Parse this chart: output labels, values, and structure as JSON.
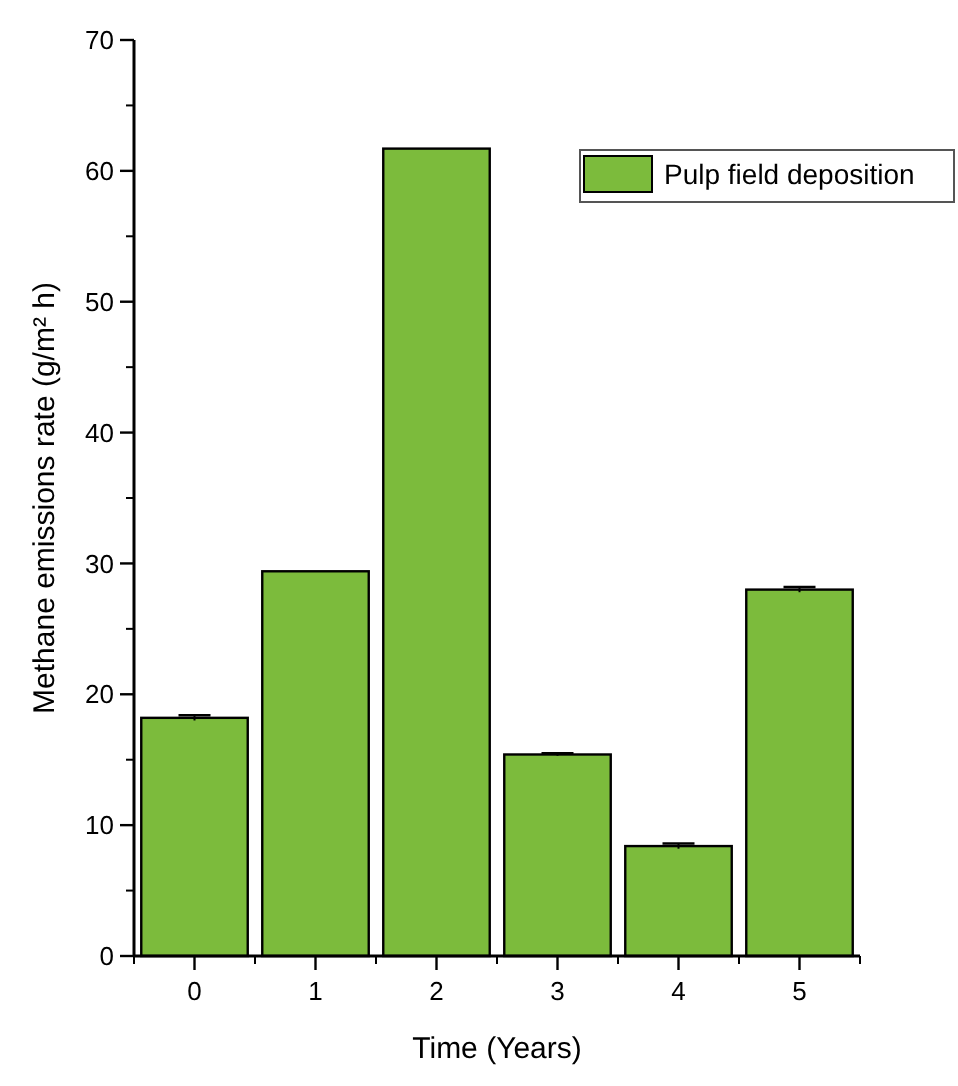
{
  "chart_data": {
    "type": "bar",
    "xlabel": "Time (Years)",
    "ylabel": "Methane emissions rate (g/m² h)",
    "categories": [
      "0",
      "1",
      "2",
      "3",
      "4",
      "5"
    ],
    "series": [
      {
        "name": "Pulp field deposition",
        "color": "#7cbb3c",
        "values": [
          18.2,
          29.4,
          61.7,
          15.4,
          8.4,
          28.0
        ],
        "errors": [
          0.2,
          null,
          null,
          0.1,
          0.2,
          0.2
        ]
      }
    ],
    "ylim": [
      0,
      70
    ],
    "yticks": [
      0,
      10,
      20,
      30,
      40,
      50,
      60,
      70
    ],
    "grid": false,
    "legend": "top right"
  }
}
